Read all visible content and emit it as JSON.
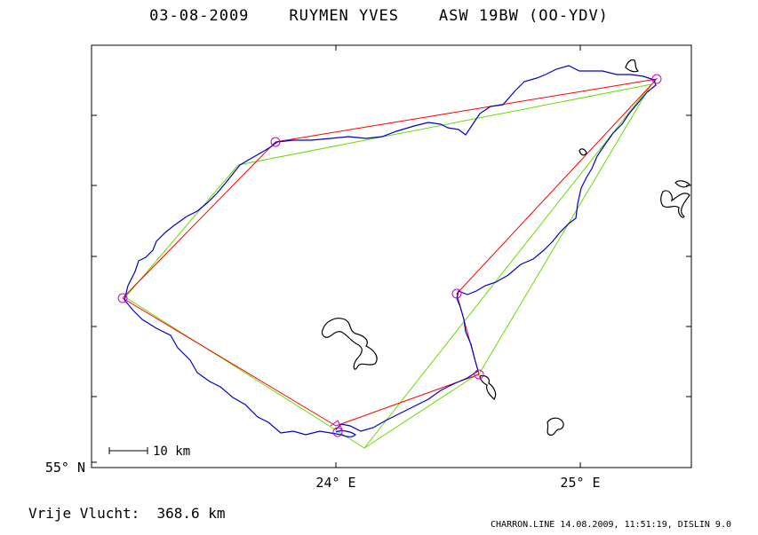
{
  "header": {
    "date": "03-08-2009",
    "pilot": "RUYMEN YVES",
    "glider": "ASW 19BW (OO-YDV)"
  },
  "axes": {
    "y_label": "55° N",
    "x_labels": [
      "24° E",
      "25° E"
    ]
  },
  "scale_bar": {
    "label": "10 km"
  },
  "summary": {
    "label": "Vrije Vlucht:",
    "distance": "368.6 km"
  },
  "footer": {
    "source": "CHARRON.LINE",
    "date": "14.08.2009,",
    "time": "11:51:19,",
    "library": "DISLIN 9.0"
  },
  "colors": {
    "track": "#0000cc",
    "optimized_route": "#ff0000",
    "declared_route": "#66dd00",
    "turnpoint": "#cc00cc",
    "terrain": "#000000"
  },
  "map_data": {
    "turnpoints_count": 6
  }
}
